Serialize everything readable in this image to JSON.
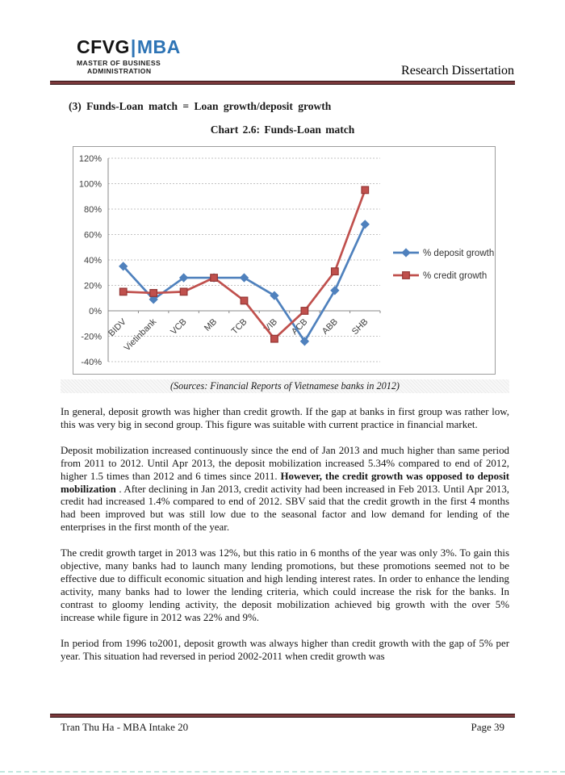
{
  "header": {
    "logo_cfvg": "CFVG",
    "logo_bar": "|",
    "logo_mba": "MBA",
    "logo_sub_line1": "MASTER OF BUSINESS",
    "logo_sub_line2": "ADMINISTRATION",
    "logo_accent_color": "#2e74b5",
    "right_title": "Research Dissertation",
    "rule_color": "#7c3a3c"
  },
  "section_heading": "(3) Funds-Loan match = Loan growth/deposit growth",
  "chart_title": "Chart 2.6: Funds-Loan match",
  "chart_caption": "(Sources: Financial Reports of Vietnamese banks in 2012)",
  "chart_data": {
    "type": "line",
    "title": "Chart 2.6: Funds-Loan match",
    "categories": [
      "BIDV",
      "Vietinbank",
      "VCB",
      "MB",
      "TCB",
      "VIB",
      "ACB",
      "ABB",
      "SHB"
    ],
    "series": [
      {
        "name": "% deposit growth",
        "color": "#4f81bd",
        "marker": "diamond",
        "values": [
          35,
          9,
          26,
          26,
          26,
          12,
          -24,
          16,
          68
        ]
      },
      {
        "name": "% credit growth",
        "color": "#c0504d",
        "marker": "square",
        "marker_edge": "#943634",
        "values": [
          15,
          14,
          15,
          26,
          8,
          -22,
          0,
          31,
          95
        ]
      }
    ],
    "ylim": [
      -40,
      120
    ],
    "ytick_step": 20,
    "ytick_labels": [
      "-40%",
      "-20%",
      "0%",
      "20%",
      "40%",
      "60%",
      "80%",
      "100%",
      "120%"
    ],
    "xlabel": "",
    "ylabel": "",
    "grid": true,
    "legend_position": "right"
  },
  "paragraphs": {
    "p1": "In general, deposit growth was higher than credit growth. If the gap at banks in first group was rather low, this was very big in second group. This figure was suitable with current practice in financial market.",
    "p2_part1": "Deposit mobilization increased continuously since the end of Jan 2013 and much higher than same period from 2011 to 2012. Until Apr 2013, the deposit mobilization increased 5.34% compared to end of 2012, higher 1.5 times than 2012 and 6 times since 2011. ",
    "p2_bold": "However, the credit growth was opposed to deposit mobilization",
    "p2_part2": " . After declining in Jan 2013, credit activity had been increased in Feb 2013. Until Apr 2013, credit had increased 1.4% compared to end of 2012. SBV said that the credit growth in the first 4 months had been improved but was still low due to the seasonal factor and low demand for lending of the enterprises in the first month of the year.",
    "p3": "The credit growth target in 2013 was 12%, but this ratio in 6 months of the year was only 3%. To gain this objective, many banks had to launch many lending promotions, but these promotions seemed not to be effective due to difficult economic situation and high lending interest rates. In order to enhance the lending activity, many banks had to lower the lending criteria, which could increase the risk for the banks. In contrast to gloomy lending activity, the deposit mobilization achieved big growth with the over 5% increase while figure in 2012 was 22% and 9%.",
    "p4": "In period from 1996 to2001, deposit growth was always higher than credit growth with the gap of 5% per year. This situation had reversed in period 2002-2011 when credit growth was"
  },
  "footer": {
    "left": "Tran Thu Ha - MBA Intake 20",
    "right": "Page 39"
  }
}
